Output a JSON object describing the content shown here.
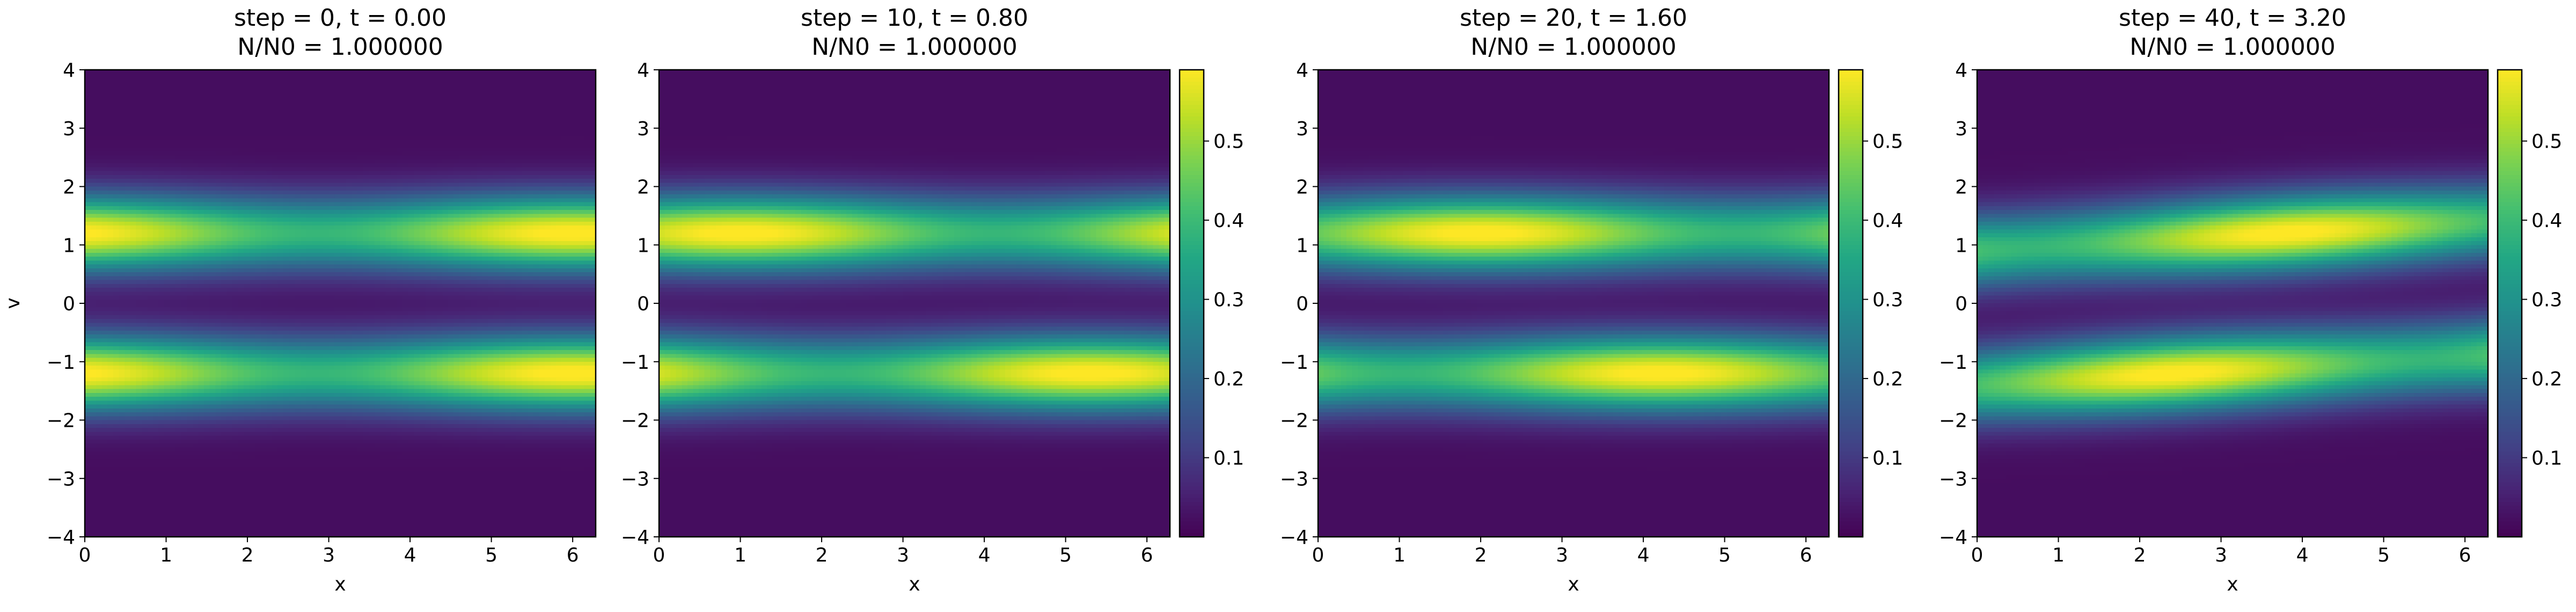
{
  "chart_data": [
    {
      "type": "heatmap",
      "title": "step = 0, t = 0.00\nN/N0 = 1.000000",
      "xlabel": "x",
      "ylabel": "v",
      "xlim": [
        0,
        6.283
      ],
      "ylim": [
        -4,
        4
      ],
      "xticks": [
        0,
        1,
        2,
        3,
        4,
        5,
        6
      ],
      "yticks": [
        -4,
        -3,
        -2,
        -1,
        0,
        1,
        2,
        3,
        4
      ],
      "colormap": "viridis",
      "colorbar": false,
      "field": {
        "v0": 1.2,
        "sigma_v": 0.45,
        "amplitude": 0.58,
        "modulation": 0.22,
        "drift_per_t": 0.0,
        "peak_x_upper": 6.0,
        "peak_x_lower": 6.0
      }
    },
    {
      "type": "heatmap",
      "title": "step = 10, t = 0.80\nN/N0 = 1.000000",
      "xlabel": "x",
      "ylabel": "",
      "xlim": [
        0,
        6.283
      ],
      "ylim": [
        -4,
        4
      ],
      "xticks": [
        0,
        1,
        2,
        3,
        4,
        5,
        6
      ],
      "yticks": [
        -4,
        -3,
        -2,
        -1,
        0,
        1,
        2,
        3,
        4
      ],
      "colormap": "viridis",
      "colorbar": true,
      "colorbar_ticks": [
        0.1,
        0.2,
        0.3,
        0.4,
        0.5
      ],
      "colorbar_range": [
        0.0,
        0.59
      ],
      "field": {
        "v0": 1.2,
        "sigma_v": 0.45,
        "amplitude": 0.58,
        "modulation": 0.22,
        "peak_x_upper": 1.0,
        "peak_x_lower": 5.3
      }
    },
    {
      "type": "heatmap",
      "title": "step = 20, t = 1.60\nN/N0 = 1.000000",
      "xlabel": "x",
      "ylabel": "",
      "xlim": [
        0,
        6.283
      ],
      "ylim": [
        -4,
        4
      ],
      "xticks": [
        0,
        1,
        2,
        3,
        4,
        5,
        6
      ],
      "yticks": [
        -4,
        -3,
        -2,
        -1,
        0,
        1,
        2,
        3,
        4
      ],
      "colormap": "viridis",
      "colorbar": true,
      "colorbar_ticks": [
        0.1,
        0.2,
        0.3,
        0.4,
        0.5
      ],
      "colorbar_range": [
        0.0,
        0.59
      ],
      "field": {
        "v0": 1.2,
        "sigma_v": 0.45,
        "amplitude": 0.58,
        "modulation": 0.22,
        "peak_x_upper": 2.0,
        "peak_x_lower": 4.2
      }
    },
    {
      "type": "heatmap",
      "title": "step = 40, t = 3.20\nN/N0 = 1.000000",
      "xlabel": "x",
      "ylabel": "",
      "xlim": [
        0,
        6.283
      ],
      "ylim": [
        -4,
        4
      ],
      "xticks": [
        0,
        1,
        2,
        3,
        4,
        5,
        6
      ],
      "yticks": [
        -4,
        -3,
        -2,
        -1,
        0,
        1,
        2,
        3,
        4
      ],
      "colormap": "viridis",
      "colorbar": true,
      "colorbar_ticks": [
        0.1,
        0.2,
        0.3,
        0.4,
        0.5
      ],
      "colorbar_range": [
        0.0,
        0.59
      ],
      "field": {
        "v0": 1.15,
        "sigma_v": 0.45,
        "amplitude": 0.58,
        "modulation": 0.22,
        "peak_x_upper": 3.8,
        "peak_x_lower": 2.4,
        "tilt": 0.08
      }
    }
  ]
}
